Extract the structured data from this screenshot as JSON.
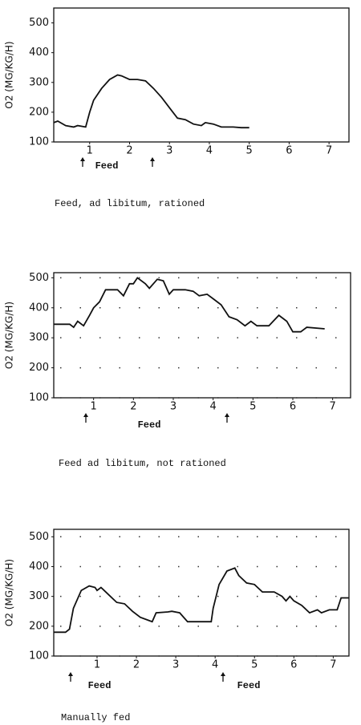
{
  "chart_data": [
    {
      "type": "line",
      "ylabel": "O2 (MG/KG/H)",
      "caption": "Feed, ad libitum, rationed",
      "annotations": [
        "Feed"
      ],
      "color": "#111111",
      "grid": false,
      "xlim": [
        0.1,
        7.5
      ],
      "ylim": [
        100,
        550
      ],
      "xticks": [
        1,
        2,
        3,
        4,
        5,
        6,
        7
      ],
      "yticks": [
        100,
        200,
        300,
        400,
        500
      ],
      "x": [
        0.1,
        0.2,
        0.4,
        0.6,
        0.7,
        0.9,
        1.0,
        1.1,
        1.3,
        1.5,
        1.7,
        1.8,
        2.0,
        2.2,
        2.4,
        2.6,
        2.8,
        3.0,
        3.2,
        3.4,
        3.6,
        3.8,
        3.9,
        4.1,
        4.3,
        4.6,
        4.8,
        5.0
      ],
      "values": [
        165,
        170,
        155,
        150,
        155,
        150,
        200,
        240,
        280,
        310,
        325,
        322,
        310,
        310,
        305,
        280,
        250,
        215,
        180,
        175,
        160,
        155,
        165,
        160,
        150,
        150,
        148,
        148
      ]
    },
    {
      "type": "line",
      "ylabel": "O2 (MG/KG/H)",
      "caption": "Feed ad libitum, not rationed",
      "annotations": [
        "Feed"
      ],
      "color": "#111111",
      "grid": true,
      "xlim": [
        0,
        7.45
      ],
      "ylim": [
        100,
        517
      ],
      "xticks": [
        1,
        2,
        3,
        4,
        5,
        6,
        7
      ],
      "yticks": [
        100,
        200,
        300,
        400,
        500
      ],
      "x": [
        0,
        0.4,
        0.5,
        0.6,
        0.75,
        0.9,
        1.0,
        1.15,
        1.3,
        1.6,
        1.75,
        1.9,
        2.0,
        2.1,
        2.3,
        2.4,
        2.6,
        2.75,
        2.9,
        3.0,
        3.3,
        3.5,
        3.65,
        3.85,
        4.0,
        4.2,
        4.4,
        4.6,
        4.8,
        4.95,
        5.1,
        5.4,
        5.65,
        5.85,
        6.0,
        6.2,
        6.35,
        6.8
      ],
      "values": [
        345,
        345,
        335,
        355,
        340,
        375,
        400,
        420,
        460,
        460,
        440,
        480,
        480,
        500,
        480,
        465,
        495,
        490,
        445,
        460,
        460,
        455,
        440,
        445,
        430,
        410,
        370,
        360,
        340,
        355,
        340,
        340,
        375,
        355,
        320,
        320,
        335,
        330
      ]
    },
    {
      "type": "line",
      "ylabel": "O2 (MG/KG/H)",
      "caption": "Manually fed",
      "annotations": [
        "Feed",
        "Feed"
      ],
      "color": "#111111",
      "grid": true,
      "xlim": [
        -0.1,
        7.4
      ],
      "ylim": [
        100,
        525
      ],
      "xticks": [
        1,
        2,
        3,
        4,
        5,
        6,
        7
      ],
      "yticks": [
        100,
        200,
        300,
        400,
        500
      ],
      "x": [
        -0.1,
        0.2,
        0.3,
        0.4,
        0.6,
        0.8,
        0.95,
        1.0,
        1.1,
        1.3,
        1.5,
        1.7,
        1.9,
        2.1,
        2.3,
        2.4,
        2.5,
        2.8,
        2.9,
        3.1,
        3.3,
        3.9,
        3.95,
        4.1,
        4.3,
        4.5,
        4.6,
        4.8,
        5.0,
        5.2,
        5.5,
        5.7,
        5.8,
        5.9,
        6.0,
        6.2,
        6.4,
        6.6,
        6.7,
        6.9,
        7.1,
        7.2,
        7.4
      ],
      "values": [
        180,
        180,
        190,
        260,
        320,
        335,
        330,
        320,
        330,
        305,
        280,
        275,
        250,
        230,
        220,
        215,
        245,
        248,
        250,
        245,
        215,
        215,
        260,
        340,
        385,
        395,
        370,
        345,
        340,
        315,
        315,
        300,
        285,
        300,
        285,
        270,
        245,
        255,
        245,
        255,
        255,
        295,
        295
      ]
    }
  ]
}
